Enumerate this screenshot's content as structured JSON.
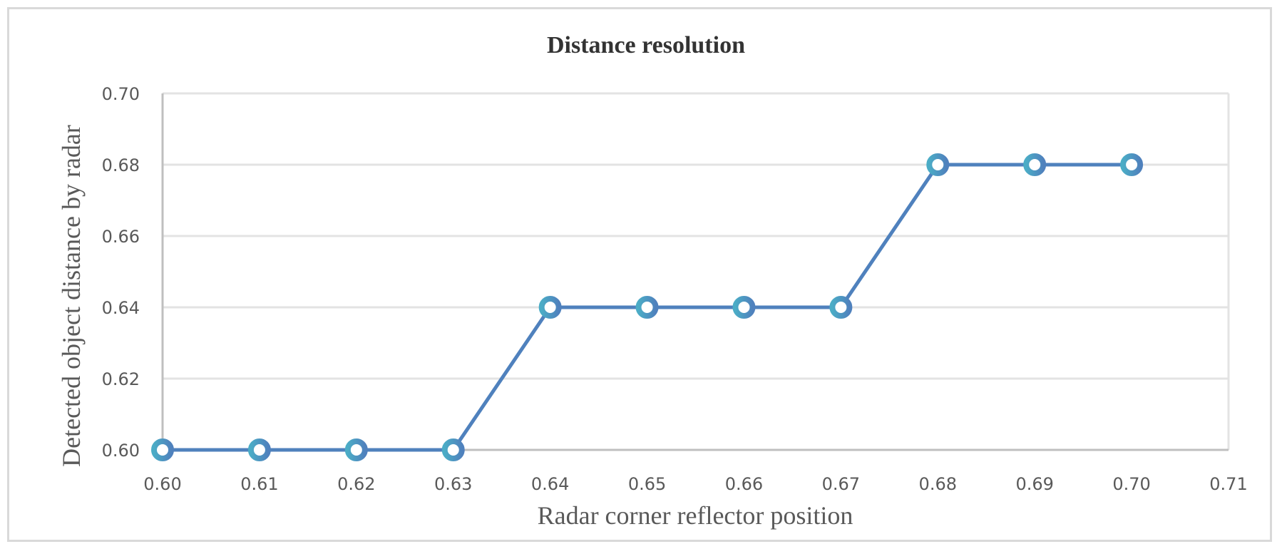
{
  "chart_data": {
    "type": "line",
    "title": "Distance resolution",
    "xlabel": "Radar corner reflector position",
    "ylabel": "Detected object distance by radar",
    "x": [
      0.6,
      0.61,
      0.62,
      0.63,
      0.64,
      0.65,
      0.66,
      0.67,
      0.68,
      0.69,
      0.7
    ],
    "series": [
      {
        "values": [
          0.6,
          0.6,
          0.6,
          0.6,
          0.64,
          0.64,
          0.64,
          0.64,
          0.68,
          0.68,
          0.68
        ]
      }
    ],
    "xlim": [
      0.6,
      0.71
    ],
    "ylim": [
      0.6,
      0.7
    ],
    "xticks": [
      "0.60",
      "0.61",
      "0.62",
      "0.63",
      "0.64",
      "0.65",
      "0.66",
      "0.67",
      "0.68",
      "0.69",
      "0.70",
      "0.71"
    ],
    "yticks": [
      "0.60",
      "0.62",
      "0.64",
      "0.66",
      "0.68",
      "0.70"
    ],
    "grid": true,
    "legend": "none",
    "colors": {
      "line": "#4f81bd",
      "marker_outer": "#4f81bd",
      "marker_inner": "#4bacc6",
      "grid": "#e3e3e3",
      "axis": "#bfbfbf"
    }
  }
}
